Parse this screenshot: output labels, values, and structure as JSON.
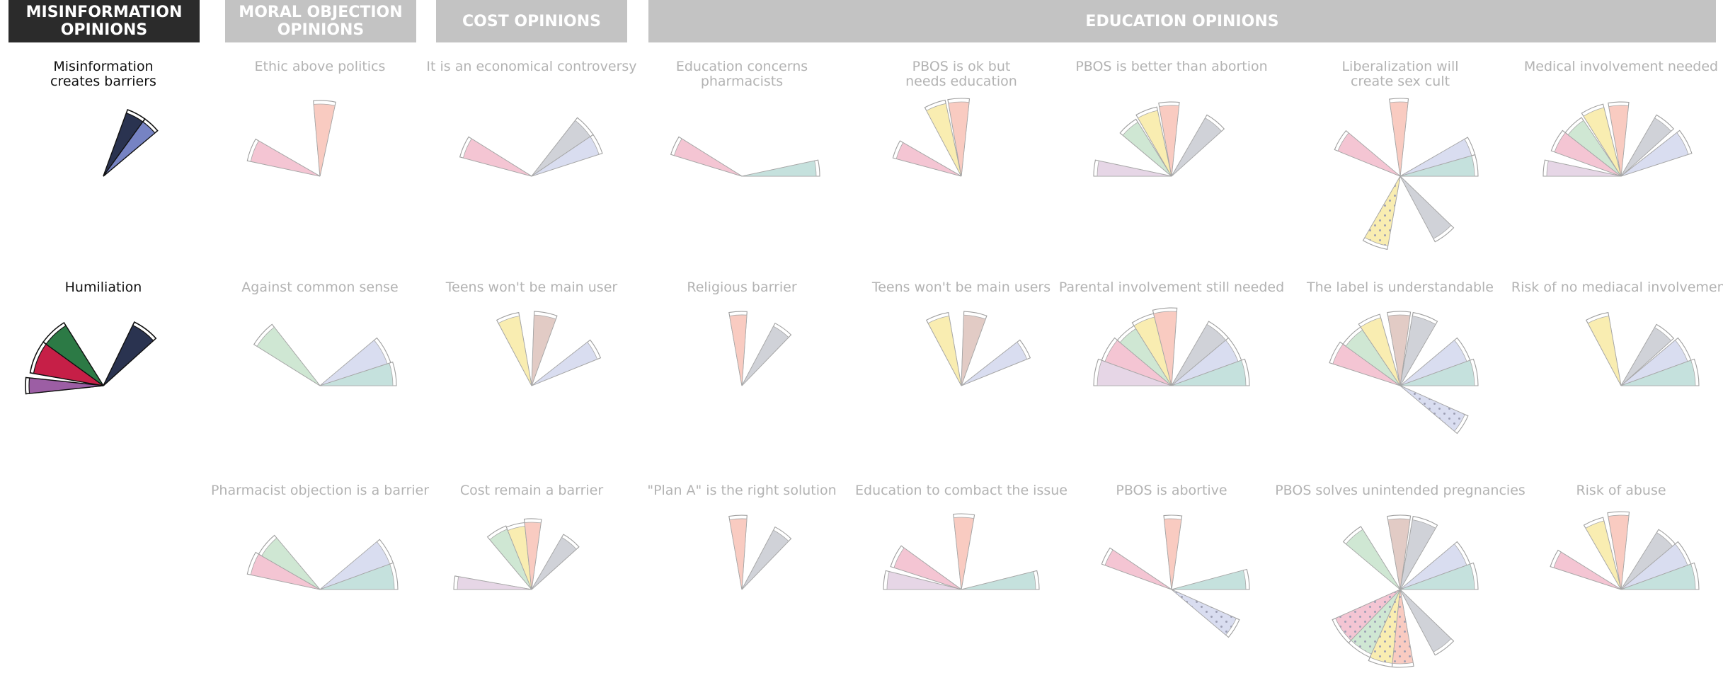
{
  "headers": {
    "misinformation": "MISINFORMATION OPINIONS",
    "moral_objection": "MORAL OBJECTION OPINIONS",
    "cost": "COST OPINIONS",
    "education": "EDUCATION OPINIONS"
  },
  "palette": {
    "pink": "#f3bccc",
    "green": "#c7e3cc",
    "yellow": "#f8eaa4",
    "salmon": "#f8c3b7",
    "taupe": "#ddc2bb",
    "grey": "#c8cbd2",
    "lavender": "#d3d8ee",
    "teal": "#bcdcd8",
    "violet": "#e2cfe2",
    "navy": "#2a3350",
    "blue": "#7683c3",
    "darkgreen": "#2c7a45",
    "crimson": "#c61f47",
    "purple": "#9c5ea4"
  },
  "glyphs": [
    {
      "label": "Misinformation creates barriers",
      "col": 0,
      "row": 0,
      "active": true,
      "petals": [
        {
          "c": "navy",
          "r": 95,
          "a0": 54,
          "a1": 70
        },
        {
          "c": "blue",
          "r": 95,
          "a0": 40,
          "a1": 54
        }
      ]
    },
    {
      "label": "Humiliation",
      "col": 0,
      "row": 1,
      "active": true,
      "petals": [
        {
          "c": "purple",
          "r": 105,
          "a0": 174,
          "a1": 186
        },
        {
          "c": "crimson",
          "r": 100,
          "a0": 144,
          "a1": 170
        },
        {
          "c": "darkgreen",
          "r": 100,
          "a0": 122,
          "a1": 144
        },
        {
          "c": "navy",
          "r": 95,
          "a0": 42,
          "a1": 64
        }
      ]
    },
    {
      "label": "Ethic above politics",
      "col": 1,
      "row": 0,
      "petals": [
        {
          "c": "pink",
          "r": 100,
          "a0": 150,
          "a1": 168
        },
        {
          "c": "salmon",
          "r": 102,
          "a0": 78,
          "a1": 95
        }
      ]
    },
    {
      "label": "Against common sense",
      "col": 1,
      "row": 1,
      "petals": [
        {
          "c": "green",
          "r": 105,
          "a0": 128,
          "a1": 148
        },
        {
          "c": "lavender",
          "r": 100,
          "a0": 18,
          "a1": 40
        },
        {
          "c": "teal",
          "r": 103,
          "a0": 0,
          "a1": 18
        }
      ]
    },
    {
      "label": "Pharmacist objection is a barrier",
      "col": 1,
      "row": 2,
      "petals": [
        {
          "c": "pink",
          "r": 100,
          "a0": 150,
          "a1": 168
        },
        {
          "c": "green",
          "r": 95,
          "a0": 130,
          "a1": 150
        },
        {
          "c": "lavender",
          "r": 105,
          "a0": 20,
          "a1": 40
        },
        {
          "c": "teal",
          "r": 105,
          "a0": 0,
          "a1": 20
        }
      ]
    },
    {
      "label": "It is an economical controversy",
      "col": 2,
      "row": 0,
      "petals": [
        {
          "c": "pink",
          "r": 100,
          "a0": 148,
          "a1": 165
        },
        {
          "c": "grey",
          "r": 100,
          "a0": 34,
          "a1": 52
        },
        {
          "c": "lavender",
          "r": 100,
          "a0": 18,
          "a1": 34
        }
      ]
    },
    {
      "label": "Teens won't be main user",
      "col": 2,
      "row": 1,
      "petals": [
        {
          "c": "yellow",
          "r": 100,
          "a0": 100,
          "a1": 118
        },
        {
          "c": "taupe",
          "r": 100,
          "a0": 70,
          "a1": 88
        },
        {
          "c": "lavender",
          "r": 100,
          "a0": 22,
          "a1": 38
        }
      ]
    },
    {
      "label": "Cost remain a barrier",
      "col": 2,
      "row": 2,
      "petals": [
        {
          "c": "violet",
          "r": 105,
          "a0": 170,
          "a1": 180
        },
        {
          "c": "green",
          "r": 92,
          "a0": 112,
          "a1": 130
        },
        {
          "c": "yellow",
          "r": 90,
          "a0": 96,
          "a1": 112
        },
        {
          "c": "salmon",
          "r": 95,
          "a0": 82,
          "a1": 96
        },
        {
          "c": "grey",
          "r": 85,
          "a0": 42,
          "a1": 60
        }
      ]
    },
    {
      "label": "Education concerns pharmacists",
      "col": 3,
      "row": 0,
      "petals": [
        {
          "c": "pink",
          "r": 100,
          "a0": 148,
          "a1": 163
        },
        {
          "c": "teal",
          "r": 105,
          "a0": 0,
          "a1": 12
        }
      ]
    },
    {
      "label": "Religious barrier",
      "col": 3,
      "row": 1,
      "petals": [
        {
          "c": "salmon",
          "r": 100,
          "a0": 86,
          "a1": 100
        },
        {
          "c": "grey",
          "r": 95,
          "a0": 46,
          "a1": 62
        }
      ]
    },
    {
      "label": "\"Plan A\" is the right solution",
      "col": 3,
      "row": 2,
      "petals": [
        {
          "c": "salmon",
          "r": 100,
          "a0": 86,
          "a1": 100
        },
        {
          "c": "grey",
          "r": 95,
          "a0": 46,
          "a1": 62
        }
      ]
    },
    {
      "label": "PBOS is ok but needs education",
      "col": 4,
      "row": 0,
      "petals": [
        {
          "c": "pink",
          "r": 95,
          "a0": 150,
          "a1": 165
        },
        {
          "c": "yellow",
          "r": 105,
          "a0": 102,
          "a1": 118
        },
        {
          "c": "salmon",
          "r": 105,
          "a0": 84,
          "a1": 100
        }
      ]
    },
    {
      "label": "Teens won't be main users",
      "col": 4,
      "row": 1,
      "petals": [
        {
          "c": "yellow",
          "r": 100,
          "a0": 100,
          "a1": 118
        },
        {
          "c": "taupe",
          "r": 100,
          "a0": 70,
          "a1": 88
        },
        {
          "c": "lavender",
          "r": 100,
          "a0": 22,
          "a1": 38
        }
      ]
    },
    {
      "label": "Education to combact the issue",
      "col": 4,
      "row": 2,
      "petals": [
        {
          "c": "violet",
          "r": 105,
          "a0": 166,
          "a1": 180
        },
        {
          "c": "pink",
          "r": 100,
          "a0": 144,
          "a1": 162
        },
        {
          "c": "salmon",
          "r": 102,
          "a0": 80,
          "a1": 96
        },
        {
          "c": "teal",
          "r": 105,
          "a0": 0,
          "a1": 14
        }
      ]
    },
    {
      "label": "PBOS is better than abortion",
      "col": 5,
      "row": 0,
      "petals": [
        {
          "c": "violet",
          "r": 105,
          "a0": 168,
          "a1": 180
        },
        {
          "c": "green",
          "r": 90,
          "a0": 122,
          "a1": 140
        },
        {
          "c": "yellow",
          "r": 95,
          "a0": 102,
          "a1": 120
        },
        {
          "c": "salmon",
          "r": 100,
          "a0": 84,
          "a1": 100
        },
        {
          "c": "grey",
          "r": 95,
          "a0": 42,
          "a1": 60
        }
      ]
    },
    {
      "label": "Parental involvement still needed",
      "col": 5,
      "row": 1,
      "petals": [
        {
          "c": "violet",
          "r": 105,
          "a0": 160,
          "a1": 180
        },
        {
          "c": "pink",
          "r": 100,
          "a0": 140,
          "a1": 160
        },
        {
          "c": "green",
          "r": 95,
          "a0": 122,
          "a1": 140
        },
        {
          "c": "yellow",
          "r": 100,
          "a0": 104,
          "a1": 122
        },
        {
          "c": "salmon",
          "r": 105,
          "a0": 86,
          "a1": 104
        },
        {
          "c": "grey",
          "r": 100,
          "a0": 40,
          "a1": 60
        },
        {
          "c": "lavender",
          "r": 100,
          "a0": 20,
          "a1": 40
        },
        {
          "c": "teal",
          "r": 105,
          "a0": 0,
          "a1": 20
        }
      ]
    },
    {
      "label": "PBOS is abortive",
      "col": 5,
      "row": 2,
      "petals": [
        {
          "c": "pink",
          "r": 100,
          "a0": 146,
          "a1": 160
        },
        {
          "c": "salmon",
          "r": 100,
          "a0": 82,
          "a1": 96
        },
        {
          "c": "teal",
          "r": 105,
          "a0": 0,
          "a1": 15
        },
        {
          "c": "lavender",
          "r": 100,
          "a0": -40,
          "a1": -24,
          "dotted": true
        }
      ]
    },
    {
      "label": "Liberalization will create sex cult",
      "col": 6,
      "row": 0,
      "petals": [
        {
          "c": "pink",
          "r": 95,
          "a0": 140,
          "a1": 158
        },
        {
          "c": "salmon",
          "r": 105,
          "a0": 84,
          "a1": 98
        },
        {
          "c": "lavender",
          "r": 105,
          "a0": 16,
          "a1": 30
        },
        {
          "c": "teal",
          "r": 105,
          "a0": 0,
          "a1": 16
        },
        {
          "c": "yellow",
          "r": 100,
          "a0": -120,
          "a1": -100,
          "dotted": true
        },
        {
          "c": "grey",
          "r": 100,
          "a0": -62,
          "a1": -44
        }
      ]
    },
    {
      "label": "The label is understandable",
      "col": 6,
      "row": 1,
      "petals": [
        {
          "c": "pink",
          "r": 100,
          "a0": 144,
          "a1": 162
        },
        {
          "c": "green",
          "r": 95,
          "a0": 124,
          "a1": 144
        },
        {
          "c": "yellow",
          "r": 100,
          "a0": 106,
          "a1": 124
        },
        {
          "c": "taupe",
          "r": 100,
          "a0": 82,
          "a1": 100
        },
        {
          "c": "grey",
          "r": 100,
          "a0": 60,
          "a1": 80
        },
        {
          "c": "lavender",
          "r": 100,
          "a0": 20,
          "a1": 40
        },
        {
          "c": "teal",
          "r": 105,
          "a0": 0,
          "a1": 20
        },
        {
          "c": "lavender",
          "r": 100,
          "a0": -40,
          "a1": -24,
          "dotted": true
        }
      ]
    },
    {
      "label": "PBOS solves unintended pregnancies",
      "col": 6,
      "row": 2,
      "petals": [
        {
          "c": "green",
          "r": 100,
          "a0": 122,
          "a1": 140
        },
        {
          "c": "taupe",
          "r": 100,
          "a0": 82,
          "a1": 100
        },
        {
          "c": "grey",
          "r": 100,
          "a0": 60,
          "a1": 80
        },
        {
          "c": "lavender",
          "r": 100,
          "a0": 20,
          "a1": 40
        },
        {
          "c": "teal",
          "r": 105,
          "a0": 0,
          "a1": 20
        },
        {
          "c": "pink",
          "r": 100,
          "a0": -156,
          "a1": -134,
          "dotted": true
        },
        {
          "c": "green",
          "r": 100,
          "a0": -134,
          "a1": -114,
          "dotted": true
        },
        {
          "c": "yellow",
          "r": 105,
          "a0": -114,
          "a1": -96,
          "dotted": true
        },
        {
          "c": "salmon",
          "r": 105,
          "a0": -96,
          "a1": -80,
          "dotted": true
        },
        {
          "c": "grey",
          "r": 100,
          "a0": -62,
          "a1": -44
        }
      ]
    },
    {
      "label": "Medical involvement needed",
      "col": 7,
      "row": 0,
      "petals": [
        {
          "c": "violet",
          "r": 105,
          "a0": 168,
          "a1": 180
        },
        {
          "c": "pink",
          "r": 100,
          "a0": 142,
          "a1": 160
        },
        {
          "c": "green",
          "r": 95,
          "a0": 124,
          "a1": 142
        },
        {
          "c": "yellow",
          "r": 100,
          "a0": 104,
          "a1": 122
        },
        {
          "c": "salmon",
          "r": 100,
          "a0": 84,
          "a1": 100
        },
        {
          "c": "grey",
          "r": 95,
          "a0": 42,
          "a1": 60
        },
        {
          "c": "lavender",
          "r": 100,
          "a0": 18,
          "a1": 38
        }
      ]
    },
    {
      "label": "Risk of no mediacal involvement",
      "col": 7,
      "row": 1,
      "petals": [
        {
          "c": "yellow",
          "r": 100,
          "a0": 100,
          "a1": 118
        },
        {
          "c": "grey",
          "r": 95,
          "a0": 42,
          "a1": 60
        },
        {
          "c": "lavender",
          "r": 100,
          "a0": 20,
          "a1": 40
        },
        {
          "c": "teal",
          "r": 105,
          "a0": 0,
          "a1": 20
        }
      ]
    },
    {
      "label": "Risk of abuse",
      "col": 7,
      "row": 2,
      "petals": [
        {
          "c": "pink",
          "r": 100,
          "a0": 148,
          "a1": 162
        },
        {
          "c": "yellow",
          "r": 100,
          "a0": 104,
          "a1": 120
        },
        {
          "c": "salmon",
          "r": 105,
          "a0": 84,
          "a1": 100
        },
        {
          "c": "grey",
          "r": 95,
          "a0": 40,
          "a1": 58
        },
        {
          "c": "lavender",
          "r": 100,
          "a0": 20,
          "a1": 40
        },
        {
          "c": "teal",
          "r": 105,
          "a0": 0,
          "a1": 20
        }
      ]
    }
  ]
}
